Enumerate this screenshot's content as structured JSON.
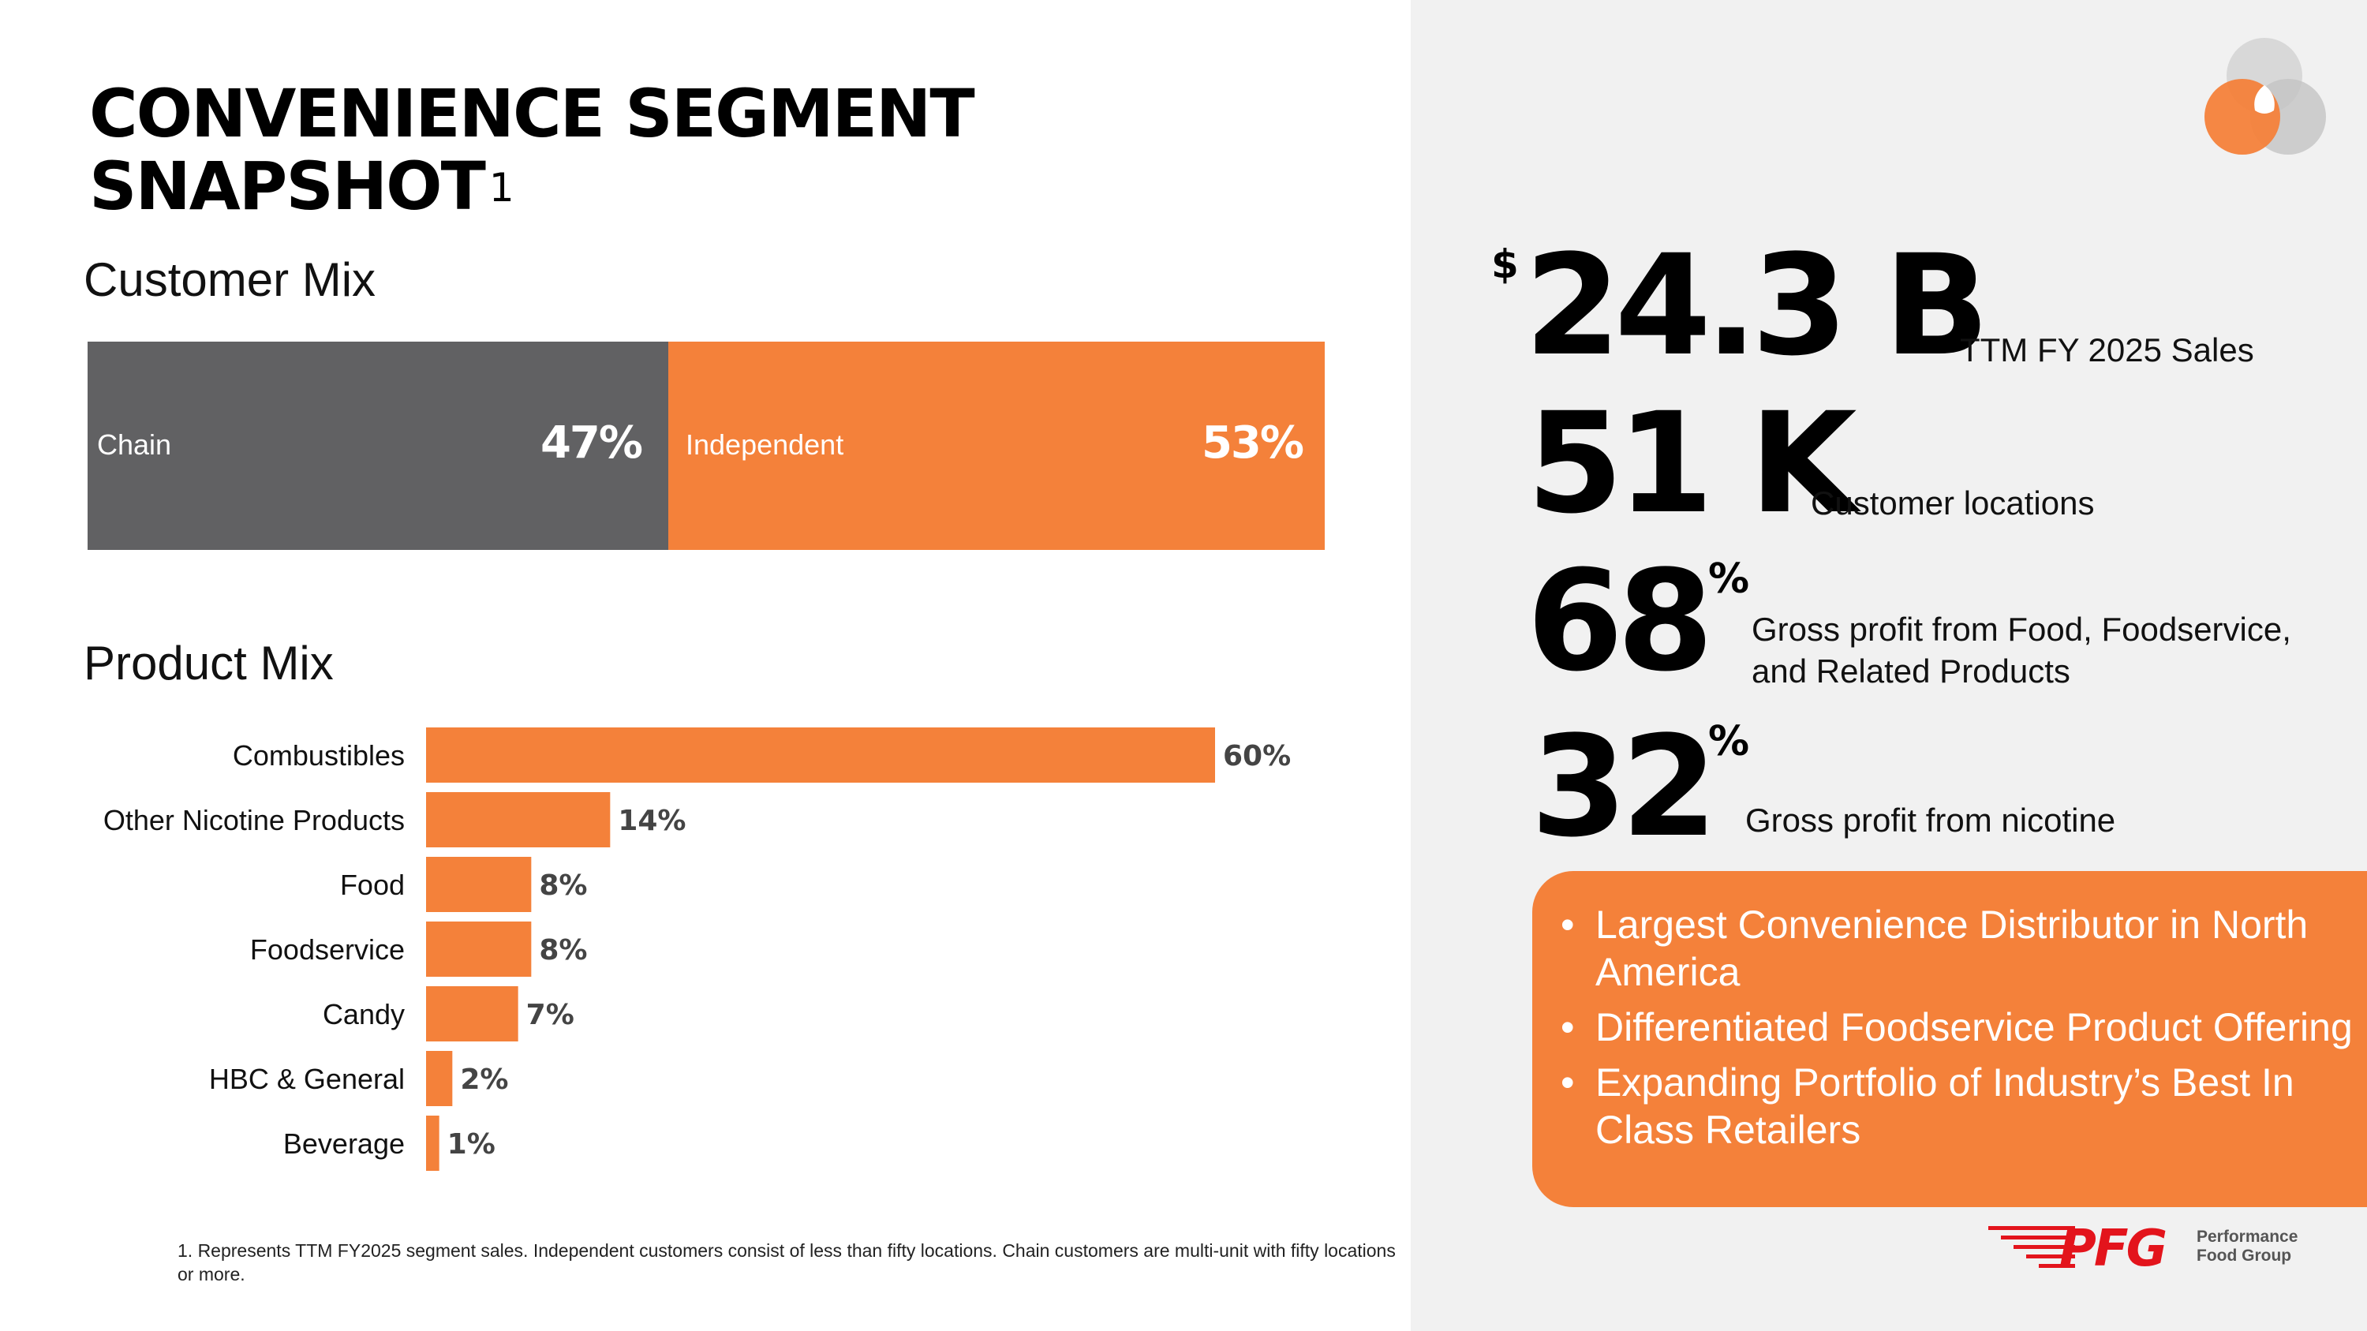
{
  "title": {
    "line1": "CONVENIENCE SEGMENT",
    "line2": "SNAPSHOT",
    "footnote_marker": "1"
  },
  "customer_mix": {
    "heading": "Customer Mix",
    "segments": [
      {
        "label": "Chain",
        "value": "47%",
        "share": 47,
        "color": "#616163"
      },
      {
        "label": "Independent",
        "value": "53%",
        "share": 53,
        "color": "#f4813a"
      }
    ]
  },
  "product_mix": {
    "heading": "Product Mix"
  },
  "chart_data": {
    "type": "bar",
    "orientation": "horizontal",
    "title": "Product Mix",
    "categories": [
      "Combustibles",
      "Other Nicotine Products",
      "Food",
      "Foodservice",
      "Candy",
      "HBC & General",
      "Beverage"
    ],
    "values": [
      60,
      14,
      8,
      8,
      7,
      2,
      1
    ],
    "value_labels": [
      "60%",
      "14%",
      "8%",
      "8%",
      "7%",
      "2%",
      "1%"
    ],
    "xlim": [
      0,
      60
    ],
    "color": "#f4813a",
    "grid": false
  },
  "stats": {
    "sales": {
      "currency": "$",
      "value": "24.3 B",
      "label": "TTM FY 2025 Sales"
    },
    "locations": {
      "value": "51 K",
      "label": "Customer locations"
    },
    "food_gp": {
      "value": "68",
      "unit": "%",
      "label_line1": "Gross profit from Food, Foodservice,",
      "label_line2": "and Related Products"
    },
    "nicotine_gp": {
      "value": "32",
      "unit": "%",
      "label": "Gross profit from nicotine"
    }
  },
  "highlights": [
    "Largest Convenience Distributor in North America",
    "Differentiated Foodservice Product Offering",
    "Expanding Portfolio of Industry’s Best In Class Retailers"
  ],
  "footnote": "1. Represents TTM FY2025 segment sales. Independent customers consist of less than  fifty locations. Chain customers are multi-unit with fifty locations or more.",
  "brand": {
    "mark": "PFG",
    "tagline_line1": "Performance",
    "tagline_line2": "Food Group",
    "accent_color": "#f4813a",
    "logo_red": "#e3141c"
  }
}
